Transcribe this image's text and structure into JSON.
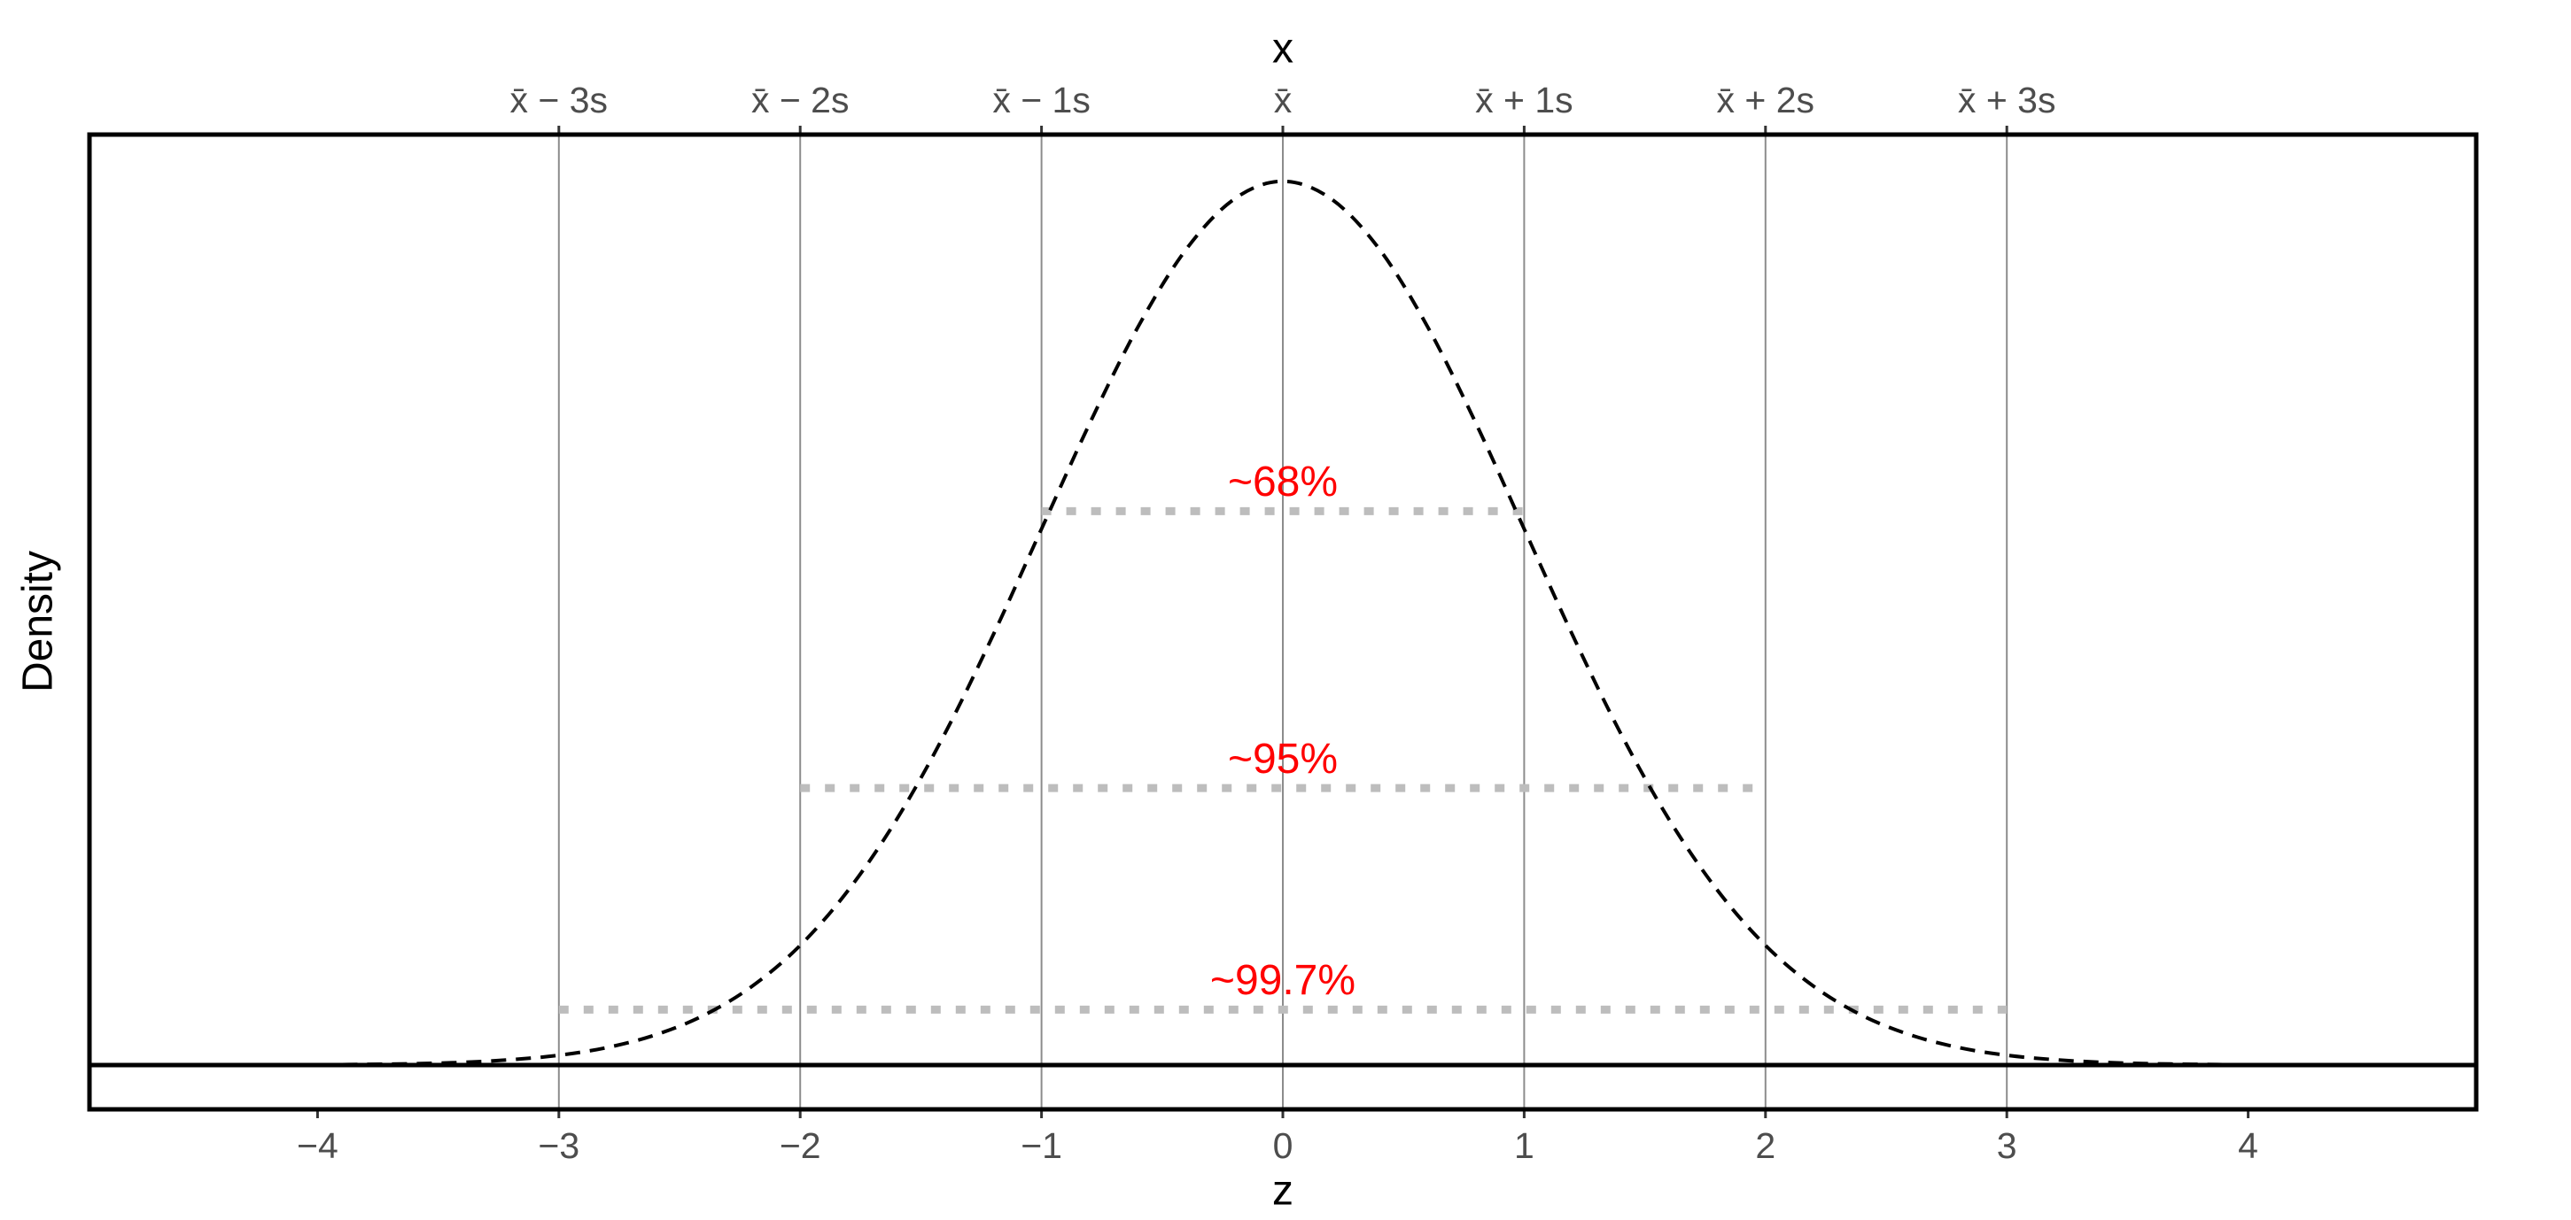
{
  "chart_data": {
    "type": "line",
    "xlabel": "z",
    "x2label": "x",
    "ylabel": "Density",
    "xlim": [
      -4.945,
      4.945
    ],
    "ylim": [
      -0.02,
      0.42
    ],
    "xticks": [
      {
        "value": -4,
        "label": "−4"
      },
      {
        "value": -3,
        "label": "−3"
      },
      {
        "value": -2,
        "label": "−2"
      },
      {
        "value": -1,
        "label": "−1"
      },
      0,
      1,
      2,
      3,
      4
    ],
    "x2ticks": [
      {
        "value": -3,
        "label": "x̄ − 3s"
      },
      {
        "value": -2,
        "label": "x̄ − 2s"
      },
      {
        "value": -1,
        "label": "x̄ − 1s"
      },
      {
        "value": 0,
        "label": "x̄"
      },
      {
        "value": 1,
        "label": "x̄ + 1s"
      },
      {
        "value": 2,
        "label": "x̄ + 2s"
      },
      {
        "value": 3,
        "label": "x̄ + 3s"
      }
    ],
    "grid": true,
    "baseline": 0,
    "x": [
      -4,
      -3.8,
      -3.6,
      -3.4,
      -3.2,
      -3,
      -2.8,
      -2.6,
      -2.4,
      -2.2,
      -2,
      -1.8,
      -1.6,
      -1.4,
      -1.2,
      -1,
      -0.8,
      -0.6,
      -0.4,
      -0.2,
      0,
      0.2,
      0.4,
      0.6,
      0.8,
      1,
      1.2,
      1.4,
      1.6,
      1.8,
      2,
      2.2,
      2.4,
      2.6,
      2.8,
      3,
      3.2,
      3.4,
      3.6,
      3.8,
      4
    ],
    "series": [
      {
        "color": "#000000",
        "values": [
          0.0001,
          0.0003,
          0.0006,
          0.0012,
          0.0024,
          0.0044,
          0.0079,
          0.0136,
          0.0224,
          0.0355,
          0.054,
          0.079,
          0.1109,
          0.1497,
          0.1942,
          0.242,
          0.2897,
          0.3332,
          0.3683,
          0.391,
          0.3989,
          0.391,
          0.3683,
          0.3332,
          0.2897,
          0.242,
          0.1942,
          0.1497,
          0.1109,
          0.079,
          0.054,
          0.0355,
          0.0224,
          0.0136,
          0.0079,
          0.0044,
          0.0024,
          0.0012,
          0.0006,
          0.0003,
          0.0001
        ]
      }
    ],
    "intervals": [
      {
        "label": "~68%",
        "from": -1,
        "to": 1,
        "y": 0.25
      },
      {
        "label": "~95%",
        "from": -2,
        "to": 2,
        "y": 0.125
      },
      {
        "label": "~99.7%",
        "from": -3,
        "to": 3,
        "y": 0.025
      }
    ],
    "interval_color": "#bdbdbd",
    "label_color": "#ff0000"
  }
}
